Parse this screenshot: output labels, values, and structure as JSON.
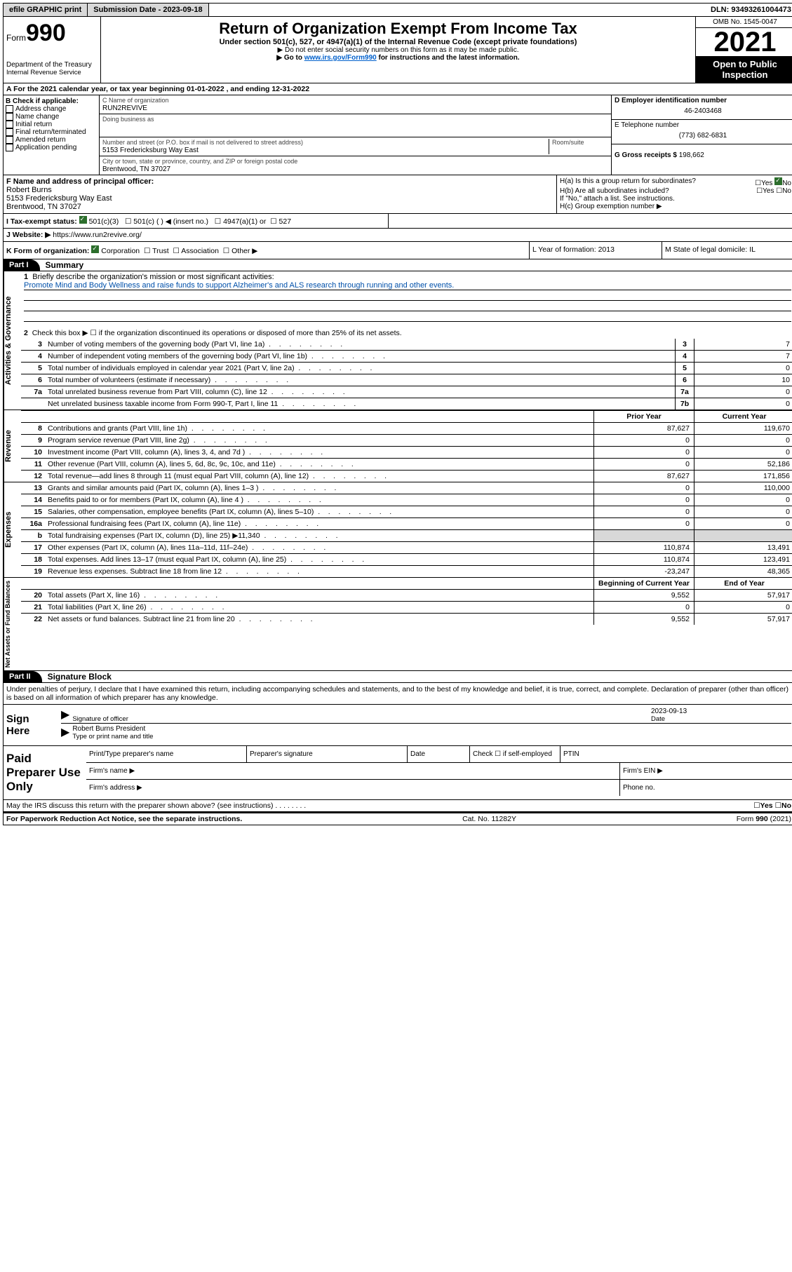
{
  "topbar": {
    "efile": "efile GRAPHIC print",
    "sub_label": "Submission Date - ",
    "sub_date": "2023-09-18",
    "dln_label": "DLN: ",
    "dln": "93493261004473"
  },
  "header": {
    "form_prefix": "Form",
    "form_number": "990",
    "dept": "Department of the Treasury",
    "irs": "Internal Revenue Service",
    "title": "Return of Organization Exempt From Income Tax",
    "subtitle": "Under section 501(c), 527, or 4947(a)(1) of the Internal Revenue Code (except private foundations)",
    "note1": "▶ Do not enter social security numbers on this form as it may be made public.",
    "note2_pre": "▶ Go to ",
    "note2_link": "www.irs.gov/Form990",
    "note2_post": " for instructions and the latest information.",
    "omb": "OMB No. 1545-0047",
    "year": "2021",
    "open": "Open to Public Inspection"
  },
  "row_a": "A For the 2021 calendar year, or tax year beginning 01-01-2022   , and ending 12-31-2022",
  "col_b": {
    "title": "B Check if applicable:",
    "items": [
      "Address change",
      "Name change",
      "Initial return",
      "Final return/terminated",
      "Amended return",
      "Application pending"
    ]
  },
  "col_c": {
    "name_label": "C Name of organization",
    "name": "RUN2REVIVE",
    "dba_label": "Doing business as",
    "street_label": "Number and street (or P.O. box if mail is not delivered to street address)",
    "room_label": "Room/suite",
    "street": "5153 Fredericksburg Way East",
    "city_label": "City or town, state or province, country, and ZIP or foreign postal code",
    "city": "Brentwood, TN  37027"
  },
  "col_de": {
    "d_label": "D Employer identification number",
    "d_val": "46-2403468",
    "e_label": "E Telephone number",
    "e_val": "(773) 682-6831",
    "g_label": "G Gross receipts $ ",
    "g_val": "198,662"
  },
  "row_fh": {
    "f_label": "F Name and address of principal officer:",
    "f_name": "Robert Burns",
    "f_addr1": "5153 Fredericksburg Way East",
    "f_addr2": "Brentwood, TN  37027",
    "ha": "H(a)  Is this a group return for subordinates?",
    "hb": "H(b)  Are all subordinates included?",
    "hb_note": "If \"No,\" attach a list. See instructions.",
    "hc": "H(c)  Group exemption number ▶",
    "yes": "Yes",
    "no": "No"
  },
  "row_i": {
    "label": "I   Tax-exempt status:",
    "o1": "501(c)(3)",
    "o2": "501(c) (  ) ◀ (insert no.)",
    "o3": "4947(a)(1) or",
    "o4": "527"
  },
  "row_j": {
    "label": "J   Website: ▶ ",
    "val": "https://www.run2revive.org/"
  },
  "row_k": {
    "label": "K Form of organization:",
    "o1": "Corporation",
    "o2": "Trust",
    "o3": "Association",
    "o4": "Other ▶",
    "l": "L Year of formation: 2013",
    "m": "M State of legal domicile: IL"
  },
  "parts": {
    "p1_tab": "Part I",
    "p1_title": "Summary",
    "p2_tab": "Part II",
    "p2_title": "Signature Block"
  },
  "summary": {
    "section_labels": {
      "gov": "Activities & Governance",
      "rev": "Revenue",
      "exp": "Expenses",
      "net": "Net Assets or Fund Balances"
    },
    "l1_label": "Briefly describe the organization's mission or most significant activities:",
    "l1_text": "Promote Mind and Body Wellness and raise funds to support Alzheimer's and ALS research through running and other events.",
    "l2": "Check this box ▶ ☐  if the organization discontinued its operations or disposed of more than 25% of its net assets.",
    "lines_gov": [
      {
        "n": "3",
        "t": "Number of voting members of the governing body (Part VI, line 1a)",
        "box": "3",
        "v": "7"
      },
      {
        "n": "4",
        "t": "Number of independent voting members of the governing body (Part VI, line 1b)",
        "box": "4",
        "v": "7"
      },
      {
        "n": "5",
        "t": "Total number of individuals employed in calendar year 2021 (Part V, line 2a)",
        "box": "5",
        "v": "0"
      },
      {
        "n": "6",
        "t": "Total number of volunteers (estimate if necessary)",
        "box": "6",
        "v": "10"
      },
      {
        "n": "7a",
        "t": "Total unrelated business revenue from Part VIII, column (C), line 12",
        "box": "7a",
        "v": "0"
      },
      {
        "n": "",
        "t": "Net unrelated business taxable income from Form 990-T, Part I, line 11",
        "box": "7b",
        "v": "0"
      }
    ],
    "col_head_prior": "Prior Year",
    "col_head_current": "Current Year",
    "lines_rev": [
      {
        "n": "8",
        "t": "Contributions and grants (Part VIII, line 1h)",
        "p": "87,627",
        "c": "119,670"
      },
      {
        "n": "9",
        "t": "Program service revenue (Part VIII, line 2g)",
        "p": "0",
        "c": "0"
      },
      {
        "n": "10",
        "t": "Investment income (Part VIII, column (A), lines 3, 4, and 7d )",
        "p": "0",
        "c": "0"
      },
      {
        "n": "11",
        "t": "Other revenue (Part VIII, column (A), lines 5, 6d, 8c, 9c, 10c, and 11e)",
        "p": "0",
        "c": "52,186"
      },
      {
        "n": "12",
        "t": "Total revenue—add lines 8 through 11 (must equal Part VIII, column (A), line 12)",
        "p": "87,627",
        "c": "171,856"
      }
    ],
    "lines_exp": [
      {
        "n": "13",
        "t": "Grants and similar amounts paid (Part IX, column (A), lines 1–3 )",
        "p": "0",
        "c": "110,000"
      },
      {
        "n": "14",
        "t": "Benefits paid to or for members (Part IX, column (A), line 4 )",
        "p": "0",
        "c": "0"
      },
      {
        "n": "15",
        "t": "Salaries, other compensation, employee benefits (Part IX, column (A), lines 5–10)",
        "p": "0",
        "c": "0"
      },
      {
        "n": "16a",
        "t": "Professional fundraising fees (Part IX, column (A), line 11e)",
        "p": "0",
        "c": "0"
      },
      {
        "n": "b",
        "t": "Total fundraising expenses (Part IX, column (D), line 25) ▶11,340",
        "p": "",
        "c": "",
        "shade": true
      },
      {
        "n": "17",
        "t": "Other expenses (Part IX, column (A), lines 11a–11d, 11f–24e)",
        "p": "110,874",
        "c": "13,491"
      },
      {
        "n": "18",
        "t": "Total expenses. Add lines 13–17 (must equal Part IX, column (A), line 25)",
        "p": "110,874",
        "c": "123,491"
      },
      {
        "n": "19",
        "t": "Revenue less expenses. Subtract line 18 from line 12",
        "p": "-23,247",
        "c": "48,365"
      }
    ],
    "col_head_beg": "Beginning of Current Year",
    "col_head_end": "End of Year",
    "lines_net": [
      {
        "n": "20",
        "t": "Total assets (Part X, line 16)",
        "p": "9,552",
        "c": "57,917"
      },
      {
        "n": "21",
        "t": "Total liabilities (Part X, line 26)",
        "p": "0",
        "c": "0"
      },
      {
        "n": "22",
        "t": "Net assets or fund balances. Subtract line 21 from line 20",
        "p": "9,552",
        "c": "57,917"
      }
    ]
  },
  "sig": {
    "decl": "Under penalties of perjury, I declare that I have examined this return, including accompanying schedules and statements, and to the best of my knowledge and belief, it is true, correct, and complete. Declaration of preparer (other than officer) is based on all information of which preparer has any knowledge.",
    "sign_here": "Sign Here",
    "sig_officer": "Signature of officer",
    "date": "Date",
    "date_val": "2023-09-13",
    "name_title": "Robert Burns President",
    "type_name": "Type or print name and title"
  },
  "paid": {
    "label": "Paid Preparer Use Only",
    "h1": "Print/Type preparer's name",
    "h2": "Preparer's signature",
    "h3": "Date",
    "h4_pre": "Check ☐ if self-employed",
    "h5": "PTIN",
    "firm_name": "Firm's name   ▶",
    "firm_ein": "Firm's EIN ▶",
    "firm_addr": "Firm's address ▶",
    "phone": "Phone no."
  },
  "footer": {
    "discuss": "May the IRS discuss this return with the preparer shown above? (see instructions)",
    "yes": "Yes",
    "no": "No",
    "paperwork": "For Paperwork Reduction Act Notice, see the separate instructions.",
    "cat": "Cat. No. 11282Y",
    "form": "Form 990 (2021)"
  }
}
